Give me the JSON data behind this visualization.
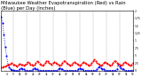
{
  "title": "Milwaukee Weather Evapotranspiration (Red) vs Rain (Blue) per Day (Inches)",
  "title_fontsize": 3.8,
  "background_color": "#ffffff",
  "et_color": "#ff0000",
  "rain_color": "#0000ff",
  "et_values": [
    0.1,
    0.1,
    0.12,
    0.13,
    0.15,
    0.18,
    0.2,
    0.22,
    0.25,
    0.2,
    0.18,
    0.15,
    0.12,
    0.18,
    0.22,
    0.2,
    0.18,
    0.15,
    0.18,
    0.22,
    0.28,
    0.25,
    0.2,
    0.18,
    0.15,
    0.18,
    0.25,
    0.3,
    0.28,
    0.22,
    0.18,
    0.15,
    0.2,
    0.25,
    0.32,
    0.3,
    0.25,
    0.22,
    0.2,
    0.24,
    0.28,
    0.25,
    0.22,
    0.18,
    0.15,
    0.2,
    0.25,
    0.32,
    0.3,
    0.25,
    0.22,
    0.18,
    0.15,
    0.2,
    0.24,
    0.28,
    0.25,
    0.22,
    0.18,
    0.15,
    0.2,
    0.24,
    0.28,
    0.25,
    0.22,
    0.18,
    0.15,
    0.2,
    0.25,
    0.32,
    0.36,
    0.3,
    0.25,
    0.22,
    0.18,
    0.15,
    0.2,
    0.24,
    0.28,
    0.25,
    0.22,
    0.18,
    0.15,
    0.2,
    0.25,
    0.32,
    0.3,
    0.25,
    0.22,
    0.18,
    0.15,
    0.2,
    0.24,
    0.28,
    0.25,
    0.22,
    0.18,
    0.15,
    0.2,
    0.25
  ],
  "rain_values": [
    1.8,
    1.6,
    1.2,
    0.8,
    0.5,
    0.2,
    0.1,
    0.05,
    0.02,
    0.01,
    0.0,
    0.0,
    0.0,
    0.0,
    0.05,
    0.08,
    0.06,
    0.04,
    0.0,
    0.0,
    0.0,
    0.0,
    0.0,
    0.0,
    0.05,
    0.08,
    0.06,
    0.04,
    0.0,
    0.0,
    0.0,
    0.0,
    0.0,
    0.0,
    0.0,
    0.0,
    0.0,
    0.0,
    0.0,
    0.0,
    0.0,
    0.0,
    0.0,
    0.05,
    0.08,
    0.06,
    0.04,
    0.0,
    0.0,
    0.0,
    0.0,
    0.0,
    0.0,
    0.0,
    0.0,
    0.0,
    0.0,
    0.0,
    0.05,
    0.08,
    0.06,
    0.04,
    0.0,
    0.0,
    0.0,
    0.0,
    0.0,
    0.0,
    0.0,
    0.0,
    0.0,
    0.0,
    0.05,
    0.1,
    0.12,
    0.08,
    0.06,
    0.04,
    0.0,
    0.0,
    0.0,
    0.0,
    0.0,
    0.0,
    0.0,
    0.0,
    0.0,
    0.05,
    0.18,
    0.12,
    0.08,
    0.06,
    0.04,
    0.0,
    0.0,
    0.0,
    0.0,
    0.0,
    0.0,
    0.0
  ],
  "ylim": [
    0,
    2.0
  ],
  "yticks": [
    0.0,
    0.25,
    0.5,
    0.75,
    1.0,
    1.25,
    1.5,
    1.75,
    2.0
  ],
  "ytick_labels": [
    "0",
    ".25",
    ".5",
    ".75",
    "1",
    "1.25",
    "1.5",
    "1.75",
    "2"
  ],
  "grid_color": "#999999",
  "grid_indices": [
    9,
    19,
    29,
    39,
    49,
    59,
    69,
    79,
    89,
    99
  ],
  "xlabel_indices": [
    4,
    9,
    14,
    19,
    24,
    29,
    34,
    39,
    44,
    49,
    54,
    59,
    64,
    69,
    74,
    79,
    84,
    89,
    94,
    99
  ],
  "xlabel_labels": [
    "4",
    "9",
    "14",
    "19",
    "24",
    "29",
    "34",
    "39",
    "44",
    "49",
    "54",
    "59",
    "64",
    "69",
    "74",
    "79",
    "84",
    "89",
    "94",
    "99"
  ],
  "n_points": 100
}
